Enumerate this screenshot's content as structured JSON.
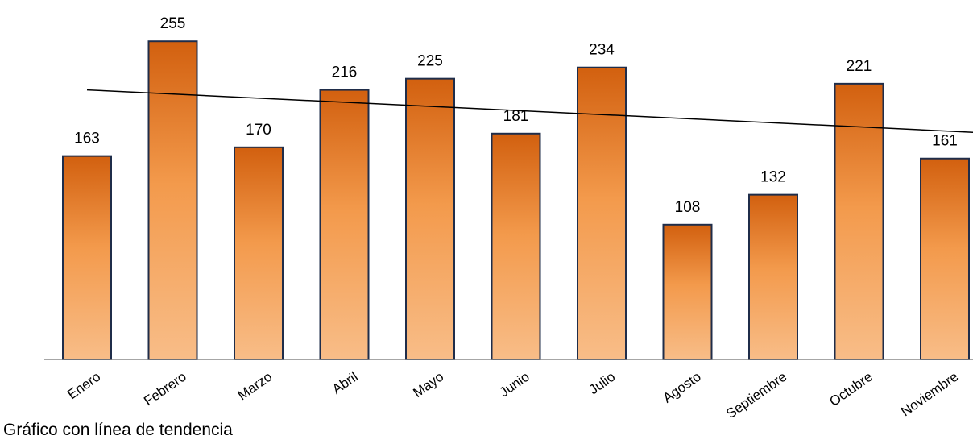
{
  "chart_data": {
    "type": "bar",
    "categories": [
      "Enero",
      "Febrero",
      "Marzo",
      "Abril",
      "Mayo",
      "Junio",
      "Julio",
      "Agosto",
      "Septiembre",
      "Octubre",
      "Noviembre"
    ],
    "values": [
      163,
      255,
      170,
      216,
      225,
      181,
      234,
      108,
      132,
      221,
      161
    ],
    "data_labels": [
      "163",
      "255",
      "170",
      "216",
      "225",
      "181",
      "234",
      "108",
      "132",
      "221",
      "161"
    ],
    "ylim": [
      0,
      270
    ],
    "trendline": {
      "type": "linear",
      "start": 216,
      "end": 182
    },
    "grid": false,
    "colors": {
      "bar_top": "#d2600f",
      "bar_mid": "#f39a4c",
      "bar_bottom": "#f8bd88",
      "bar_outline": "#1f2d4a",
      "trendline": "#000000",
      "axis": "#888888"
    }
  },
  "caption": "Gráfico con línea de tendencia"
}
